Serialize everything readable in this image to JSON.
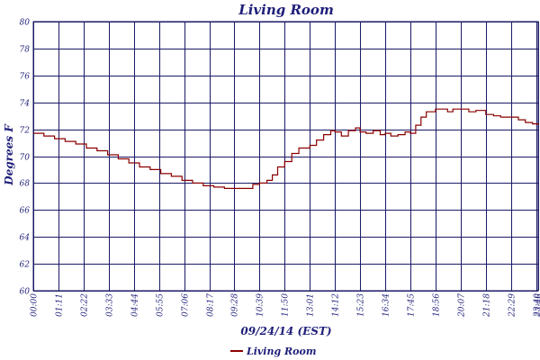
{
  "chart_data": {
    "type": "line",
    "title": "Living Room",
    "xlabel": "09/24/14 (EST)",
    "ylabel": "Degrees F",
    "ylim": [
      60,
      80
    ],
    "yticks": [
      "60",
      "62",
      "64",
      "66",
      "68",
      "70",
      "72",
      "74",
      "76",
      "78",
      "80"
    ],
    "xticks": [
      "00:00",
      "01:11",
      "02:22",
      "03:33",
      "04:44",
      "05:55",
      "07:06",
      "08:17",
      "09:28",
      "10:39",
      "11:50",
      "13:01",
      "14:12",
      "15:23",
      "16:34",
      "17:45",
      "18:56",
      "20:07",
      "21:18",
      "22:29",
      "23:40",
      "23:46"
    ],
    "grid": true,
    "legend_position": "bottom-center",
    "series": [
      {
        "name": "Living Room",
        "color": "#8b0000",
        "x": [
          "00:00",
          "00:30",
          "01:00",
          "01:30",
          "02:00",
          "02:30",
          "03:00",
          "03:30",
          "04:00",
          "04:30",
          "05:00",
          "05:30",
          "06:00",
          "06:30",
          "07:00",
          "07:30",
          "08:00",
          "08:30",
          "09:00",
          "09:28",
          "10:00",
          "10:20",
          "10:39",
          "11:00",
          "11:15",
          "11:30",
          "11:50",
          "12:10",
          "12:30",
          "13:01",
          "13:20",
          "13:40",
          "14:00",
          "14:12",
          "14:30",
          "14:50",
          "15:10",
          "15:23",
          "15:40",
          "16:00",
          "16:20",
          "16:34",
          "16:50",
          "17:10",
          "17:30",
          "17:45",
          "18:00",
          "18:15",
          "18:30",
          "18:56",
          "19:15",
          "19:30",
          "19:45",
          "20:07",
          "20:30",
          "20:50",
          "21:18",
          "21:40",
          "22:00",
          "22:29",
          "22:50",
          "23:10",
          "23:30",
          "23:46"
        ],
        "values": [
          71.7,
          71.5,
          71.3,
          71.1,
          70.9,
          70.6,
          70.4,
          70.1,
          69.8,
          69.5,
          69.2,
          69.0,
          68.7,
          68.5,
          68.2,
          68.0,
          67.8,
          67.7,
          67.6,
          67.6,
          67.6,
          67.9,
          68.0,
          68.2,
          68.6,
          69.2,
          69.6,
          70.2,
          70.6,
          70.8,
          71.2,
          71.6,
          71.9,
          71.8,
          71.5,
          71.9,
          72.1,
          71.8,
          71.7,
          71.9,
          71.6,
          71.7,
          71.5,
          71.6,
          71.8,
          71.7,
          72.3,
          72.9,
          73.3,
          73.5,
          73.5,
          73.3,
          73.5,
          73.5,
          73.3,
          73.4,
          73.1,
          73.0,
          72.9,
          72.9,
          72.7,
          72.5,
          72.4,
          72.3
        ]
      }
    ]
  }
}
